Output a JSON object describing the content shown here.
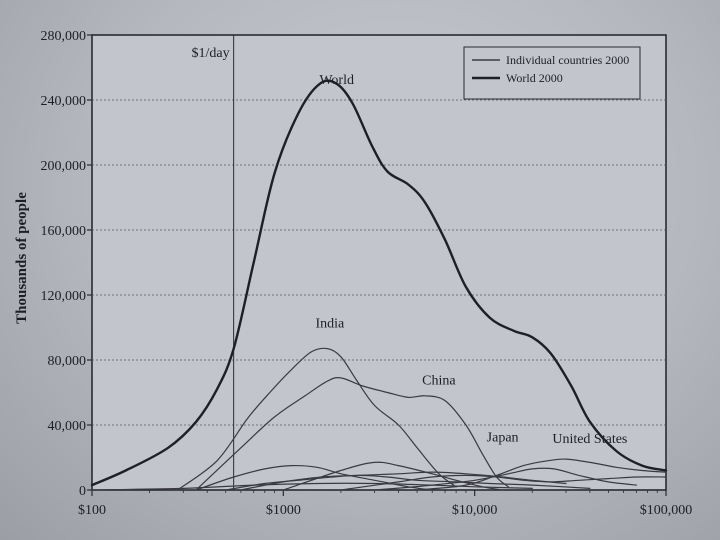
{
  "chart_data": {
    "type": "line",
    "title": "",
    "xlabel": "",
    "ylabel": "Thousands of people",
    "x_scale": "log",
    "xlim": [
      100,
      100000
    ],
    "ylim": [
      0,
      280000
    ],
    "x_ticks": [
      {
        "value": 100,
        "label": "$100"
      },
      {
        "value": 1000,
        "label": "$1000"
      },
      {
        "value": 10000,
        "label": "$10,000"
      },
      {
        "value": 100000,
        "label": "$100,000"
      }
    ],
    "y_ticks": [
      {
        "value": 0,
        "label": "0"
      },
      {
        "value": 40000,
        "label": "40,000"
      },
      {
        "value": 80000,
        "label": "80,000"
      },
      {
        "value": 120000,
        "label": "120,000"
      },
      {
        "value": 160000,
        "label": "160,000"
      },
      {
        "value": 200000,
        "label": "200,000"
      },
      {
        "value": 240000,
        "label": "240,000"
      },
      {
        "value": 280000,
        "label": "280,000"
      }
    ],
    "grid": "horizontal",
    "legend": {
      "position": "top-right",
      "entries": [
        {
          "label": "Individual countries 2000",
          "style": "thin"
        },
        {
          "label": "World 2000",
          "style": "thick"
        }
      ]
    },
    "reference_line": {
      "x": 550,
      "label": "$1/day"
    },
    "series": [
      {
        "name": "World",
        "style": "thick",
        "label_at": [
          1900,
          250000
        ],
        "points": [
          [
            100,
            3000
          ],
          [
            150,
            12000
          ],
          [
            250,
            26000
          ],
          [
            350,
            42000
          ],
          [
            450,
            62000
          ],
          [
            550,
            87000
          ],
          [
            700,
            140000
          ],
          [
            900,
            195000
          ],
          [
            1200,
            232000
          ],
          [
            1550,
            250000
          ],
          [
            1900,
            250000
          ],
          [
            2300,
            238000
          ],
          [
            2900,
            212000
          ],
          [
            3500,
            196000
          ],
          [
            4500,
            188000
          ],
          [
            5500,
            177000
          ],
          [
            7000,
            154000
          ],
          [
            9000,
            125000
          ],
          [
            12000,
            106000
          ],
          [
            16000,
            98000
          ],
          [
            20000,
            94000
          ],
          [
            25000,
            84000
          ],
          [
            32000,
            64000
          ],
          [
            40000,
            42000
          ],
          [
            55000,
            24000
          ],
          [
            75000,
            15000
          ],
          [
            100000,
            12000
          ]
        ]
      },
      {
        "name": "India",
        "style": "thin",
        "label_at": [
          1750,
          100000
        ],
        "points": [
          [
            280,
            0
          ],
          [
            450,
            18000
          ],
          [
            650,
            44000
          ],
          [
            850,
            60000
          ],
          [
            1100,
            74000
          ],
          [
            1400,
            85000
          ],
          [
            1700,
            87000
          ],
          [
            2000,
            82000
          ],
          [
            2400,
            68000
          ],
          [
            3000,
            52000
          ],
          [
            4000,
            40000
          ],
          [
            5000,
            26000
          ],
          [
            6500,
            10000
          ],
          [
            8000,
            2000
          ]
        ]
      },
      {
        "name": "China",
        "style": "thin",
        "label_at": [
          6500,
          65000
        ],
        "points": [
          [
            350,
            0
          ],
          [
            600,
            26000
          ],
          [
            900,
            45000
          ],
          [
            1300,
            58000
          ],
          [
            1700,
            67000
          ],
          [
            2000,
            69000
          ],
          [
            2600,
            64000
          ],
          [
            3500,
            60000
          ],
          [
            4500,
            57000
          ],
          [
            5500,
            58000
          ],
          [
            7000,
            55000
          ],
          [
            9000,
            40000
          ],
          [
            11000,
            22000
          ],
          [
            13000,
            8000
          ],
          [
            15000,
            2000
          ]
        ]
      },
      {
        "name": "Japan",
        "style": "thin",
        "label_at": [
          14000,
          30000
        ],
        "points": [
          [
            3000,
            0
          ],
          [
            6000,
            3000
          ],
          [
            10000,
            6000
          ],
          [
            15000,
            10000
          ],
          [
            20000,
            13000
          ],
          [
            26000,
            13000
          ],
          [
            35000,
            9000
          ],
          [
            50000,
            5000
          ],
          [
            70000,
            3000
          ]
        ]
      },
      {
        "name": "United States",
        "style": "thin",
        "label_at": [
          40000,
          29000
        ],
        "points": [
          [
            5000,
            0
          ],
          [
            9000,
            3000
          ],
          [
            13000,
            9000
          ],
          [
            18000,
            15000
          ],
          [
            24000,
            18000
          ],
          [
            30000,
            19000
          ],
          [
            40000,
            17000
          ],
          [
            55000,
            14000
          ],
          [
            75000,
            12000
          ],
          [
            100000,
            11000
          ]
        ]
      },
      {
        "name": "",
        "style": "thin",
        "points": [
          [
            350,
            0
          ],
          [
            550,
            8000
          ],
          [
            800,
            13000
          ],
          [
            1100,
            15000
          ],
          [
            1500,
            14000
          ],
          [
            2000,
            10000
          ],
          [
            3000,
            6000
          ],
          [
            4500,
            2000
          ],
          [
            6000,
            0
          ]
        ]
      },
      {
        "name": "",
        "style": "thin",
        "points": [
          [
            500,
            0
          ],
          [
            800,
            4000
          ],
          [
            1200,
            6000
          ],
          [
            1800,
            8000
          ],
          [
            2500,
            9000
          ],
          [
            3500,
            8000
          ],
          [
            5000,
            6000
          ],
          [
            8000,
            5000
          ],
          [
            12000,
            4000
          ],
          [
            20000,
            3000
          ],
          [
            40000,
            1000
          ]
        ]
      },
      {
        "name": "",
        "style": "thin",
        "points": [
          [
            1000,
            0
          ],
          [
            2000,
            12000
          ],
          [
            3000,
            17000
          ],
          [
            4000,
            15000
          ],
          [
            6000,
            10000
          ],
          [
            8000,
            6000
          ],
          [
            11000,
            2000
          ],
          [
            14000,
            0
          ]
        ]
      },
      {
        "name": "",
        "style": "thin",
        "points": [
          [
            600,
            0
          ],
          [
            1000,
            5000
          ],
          [
            1600,
            8000
          ],
          [
            2500,
            9000
          ],
          [
            4000,
            10000
          ],
          [
            6000,
            11000
          ],
          [
            9000,
            10000
          ],
          [
            14000,
            8000
          ],
          [
            20000,
            6000
          ],
          [
            30000,
            4000
          ]
        ]
      },
      {
        "name": "",
        "style": "thin",
        "points": [
          [
            2000,
            0
          ],
          [
            4000,
            5000
          ],
          [
            6000,
            8000
          ],
          [
            9000,
            9000
          ],
          [
            13000,
            8000
          ],
          [
            18000,
            6000
          ],
          [
            25000,
            5000
          ],
          [
            35000,
            6000
          ],
          [
            50000,
            7000
          ],
          [
            70000,
            8000
          ],
          [
            100000,
            8000
          ]
        ]
      },
      {
        "name": "",
        "style": "thin",
        "points": [
          [
            100,
            0
          ],
          [
            300,
            1000
          ],
          [
            700,
            3000
          ],
          [
            1500,
            4000
          ],
          [
            3000,
            4000
          ],
          [
            6000,
            3000
          ],
          [
            10000,
            2000
          ],
          [
            20000,
            1000
          ]
        ]
      }
    ]
  }
}
